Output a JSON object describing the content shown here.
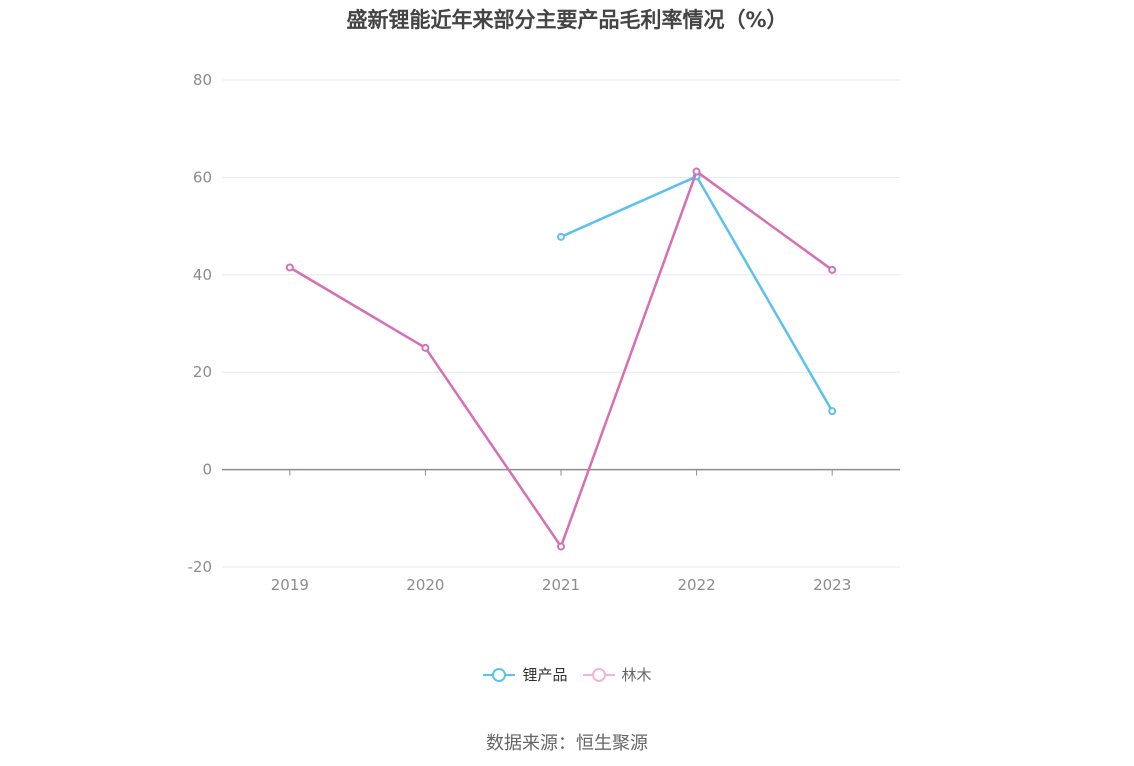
{
  "title": "盛新锂能近年来部分主要产品毛利率情况（%）",
  "source": "数据来源：恒生聚源",
  "chart_data": {
    "type": "line",
    "title": "盛新锂能近年来部分主要产品毛利率情况（%）",
    "categories": [
      "2019",
      "2020",
      "2021",
      "2022",
      "2023"
    ],
    "y_ticks": [
      "80",
      "60",
      "40",
      "20",
      "0",
      "-20"
    ],
    "ylim": [
      -20,
      80
    ],
    "grid": true,
    "legend_position": "bottom",
    "series": [
      {
        "name": "锂产品",
        "color": "#5bc2ef",
        "values": [
          null,
          null,
          47.8,
          60.2,
          12.0
        ]
      },
      {
        "name": "林木",
        "color": "#d66fb3",
        "values": [
          41.5,
          25.0,
          -15.8,
          61.2,
          41.0
        ]
      }
    ]
  }
}
